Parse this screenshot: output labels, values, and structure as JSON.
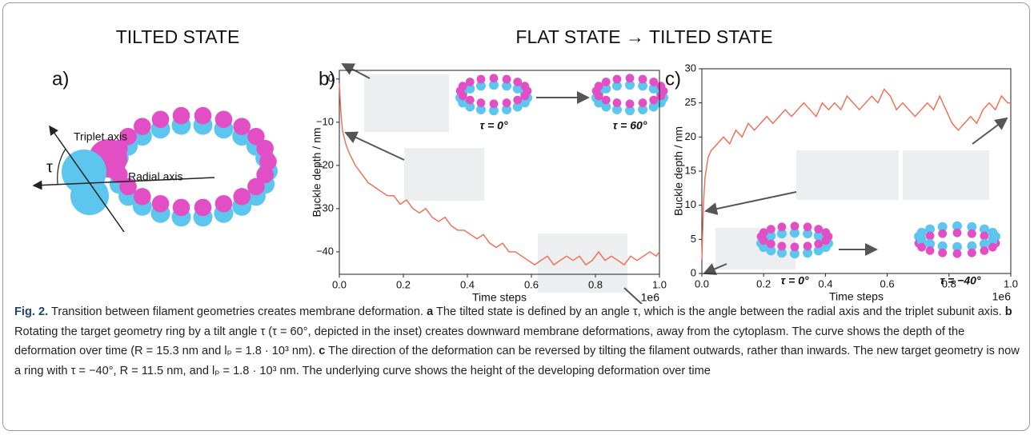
{
  "headers": {
    "left": "TILTED STATE",
    "right": "FLAT STATE → TILTED STATE"
  },
  "panel_a": {
    "label": "a)",
    "triplet_axis": "Triplet axis",
    "radial_axis": "Radial axis",
    "angle": "τ"
  },
  "chart_data": [
    {
      "type": "line",
      "panel_label": "b)",
      "xlabel": "Time steps",
      "ylabel": "Buckle depth / nm",
      "x_offset_label": "1e6",
      "color": "#f26a4f",
      "x": [
        0,
        0.005,
        0.01,
        0.02,
        0.03,
        0.05,
        0.07,
        0.09,
        0.11,
        0.13,
        0.15,
        0.17,
        0.19,
        0.21,
        0.23,
        0.25,
        0.27,
        0.29,
        0.31,
        0.33,
        0.35,
        0.37,
        0.39,
        0.41,
        0.43,
        0.45,
        0.47,
        0.49,
        0.51,
        0.53,
        0.55,
        0.57,
        0.59,
        0.61,
        0.63,
        0.65,
        0.67,
        0.69,
        0.71,
        0.73,
        0.75,
        0.77,
        0.79,
        0.81,
        0.83,
        0.85,
        0.87,
        0.89,
        0.91,
        0.93,
        0.95,
        0.97,
        0.99,
        1.0
      ],
      "values": [
        -1,
        -8,
        -12,
        -15,
        -17,
        -20,
        -22,
        -24,
        -25,
        -26,
        -27,
        -27,
        -29,
        -28,
        -30,
        -31,
        -30,
        -32,
        -33,
        -32,
        -34,
        -35,
        -35,
        -36,
        -37,
        -36,
        -38,
        -39,
        -38,
        -40,
        -40,
        -41,
        -42,
        -43,
        -42,
        -41,
        -43,
        -42,
        -41,
        -42,
        -41,
        -43,
        -42,
        -40,
        -42,
        -41,
        -42,
        -43,
        -41,
        -42,
        -41,
        -40,
        -41,
        -40
      ],
      "xlim": [
        0,
        1
      ],
      "ylim": [
        -45.2,
        2
      ],
      "xticks": [
        {
          "value": 0,
          "label": "0.0"
        },
        0.2,
        0.4,
        0.6,
        0.8,
        {
          "value": 1,
          "label": "1.0"
        }
      ],
      "yticks": [
        0,
        {
          "value": -10,
          "label": "−10"
        },
        {
          "value": -20,
          "label": "−20"
        },
        {
          "value": -30,
          "label": "−30"
        },
        {
          "value": -40,
          "label": "−40"
        }
      ],
      "annotations": [
        "τ = 0°",
        "τ = 60°"
      ]
    },
    {
      "type": "line",
      "panel_label": "c)",
      "xlabel": "Time steps",
      "ylabel": "Buckle depth / nm",
      "x_offset_label": "1e6",
      "color": "#f26a4f",
      "x": [
        0,
        0.005,
        0.01,
        0.02,
        0.03,
        0.05,
        0.07,
        0.09,
        0.11,
        0.13,
        0.15,
        0.17,
        0.19,
        0.21,
        0.23,
        0.25,
        0.27,
        0.29,
        0.31,
        0.33,
        0.35,
        0.37,
        0.39,
        0.41,
        0.43,
        0.45,
        0.47,
        0.49,
        0.51,
        0.53,
        0.55,
        0.57,
        0.59,
        0.61,
        0.63,
        0.65,
        0.67,
        0.69,
        0.71,
        0.73,
        0.75,
        0.77,
        0.79,
        0.81,
        0.83,
        0.85,
        0.87,
        0.89,
        0.91,
        0.93,
        0.95,
        0.97,
        0.99,
        1.0
      ],
      "values": [
        2,
        10,
        14,
        17,
        18,
        19,
        20,
        19,
        21,
        20,
        22,
        21,
        22,
        23,
        22,
        23,
        24,
        23,
        24,
        25,
        24,
        23,
        25,
        24,
        25,
        24,
        26,
        25,
        24,
        25,
        26,
        25,
        27,
        26,
        24,
        25,
        24,
        23,
        24,
        25,
        24,
        26,
        24,
        22,
        21,
        22,
        23,
        22,
        24,
        25,
        24,
        26,
        25,
        25
      ],
      "xlim": [
        0,
        1
      ],
      "ylim": [
        0,
        30
      ],
      "xticks": [
        {
          "value": 0,
          "label": "0.0"
        },
        0.2,
        0.4,
        0.6,
        0.8,
        {
          "value": 1,
          "label": "1.0"
        }
      ],
      "yticks": [
        0,
        5,
        10,
        15,
        20,
        25,
        30
      ],
      "annotations": [
        "τ = 0°",
        "τ = −40°"
      ]
    }
  ],
  "caption": [
    "Fig. 2.",
    " Transition between filament geometries creates membrane deformation. ",
    "a",
    " The tilted state is defined by an angle τ, which is the angle between the radial axis and the triplet subunit axis. ",
    "b",
    " Rotating the target geometry ring by a tilt angle τ (τ = 60°, depicted in the inset) creates downward membrane deformations, away from the cytoplasm. The curve shows the depth of the deformation over time (R = 15.3 nm and lₚ = 1.8 · 10³ nm). ",
    "c",
    " The direction of the deformation can be reversed by tilting the filament outwards, rather than inwards. The new target geometry is now a ring with τ = −40°, R = 11.5 nm, and lₚ = 1.8 · 10³ nm. The underlying curve shows the height of the developing deformation over time"
  ]
}
